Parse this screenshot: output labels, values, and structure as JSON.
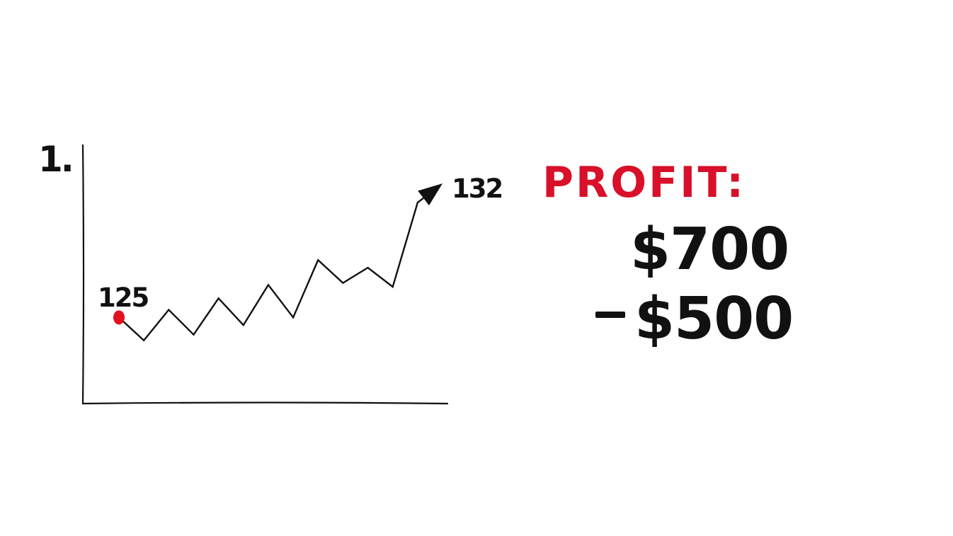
{
  "step_label": "1.",
  "chart_data": {
    "type": "line",
    "x": [
      0,
      1,
      2,
      3,
      4,
      5,
      6,
      7,
      8,
      9,
      10,
      11,
      12,
      13
    ],
    "values": [
      125,
      123.8,
      125.4,
      124.1,
      126,
      124.6,
      126.7,
      125,
      128,
      126.8,
      127.6,
      126.6,
      131,
      132
    ],
    "start_label": "125",
    "end_label": "132",
    "title": "",
    "xlabel": "",
    "ylabel": "",
    "ylim": [
      120.5,
      134
    ],
    "grid": false,
    "colors": {
      "line": "#111111",
      "start_marker": "#e3101f"
    }
  },
  "profit": {
    "title": "PROFIT:",
    "amount_1": "$700",
    "amount_2": "$500",
    "operator": "minus",
    "title_color": "#d8102a"
  }
}
